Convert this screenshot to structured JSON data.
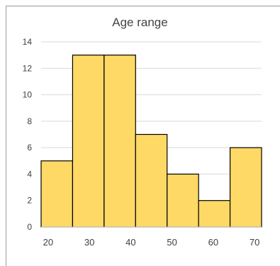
{
  "chart_data": {
    "type": "bar",
    "title": "Age range",
    "xlabel": "",
    "ylabel": "",
    "categories": [
      "20-26.6",
      "26.6-33.3",
      "33.3-40",
      "40-46.6",
      "46.6-53.3",
      "53.3-60",
      "60-66.6"
    ],
    "values": [
      5,
      13,
      13,
      7,
      4,
      2,
      6
    ],
    "x_range": [
      18.3,
      71.7
    ],
    "ylim": [
      0,
      14
    ],
    "x_ticks": [
      "20",
      "30",
      "40",
      "50",
      "60",
      "70"
    ],
    "y_ticks": [
      "0",
      "2",
      "4",
      "6",
      "8",
      "10",
      "12",
      "14"
    ],
    "grid": true,
    "legend": "none",
    "colors": {
      "bar_fill": "#FFD966",
      "bar_stroke": "#000000",
      "grid": "#D9D9D9",
      "frame": "#999999",
      "text": "#404040"
    }
  }
}
